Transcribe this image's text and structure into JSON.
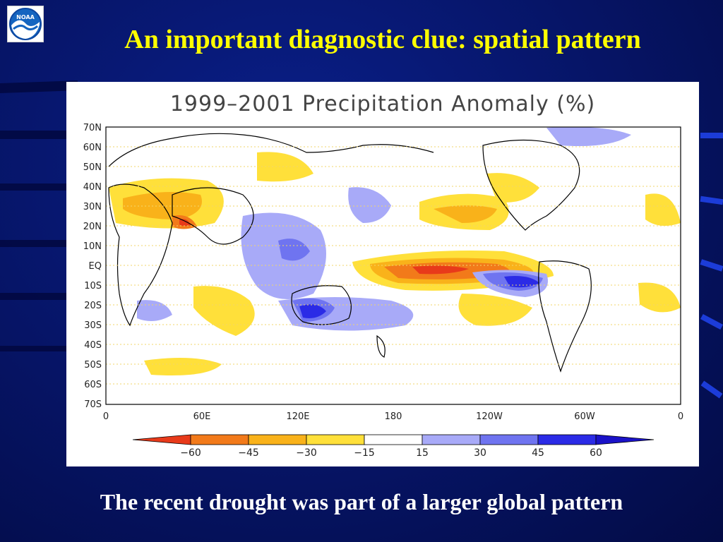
{
  "slide": {
    "title": "An important diagnostic clue: spatial pattern",
    "caption": "The recent drought was part of a larger global pattern",
    "logo_text": "NOAA",
    "colors": {
      "background": "#061465",
      "title": "#ffff00",
      "caption": "#ffffff"
    }
  },
  "map": {
    "title": "1999–2001  Precipitation Anomaly (%)",
    "lat_labels": [
      "70N",
      "60N",
      "50N",
      "40N",
      "30N",
      "20N",
      "10N",
      "EQ",
      "10S",
      "20S",
      "30S",
      "40S",
      "50S",
      "60S",
      "70S"
    ],
    "lon_labels": [
      "0",
      "60E",
      "120E",
      "180",
      "120W",
      "60W",
      "0"
    ],
    "colorbar": {
      "labels": [
        "−60",
        "−45",
        "−30",
        "−15",
        "15",
        "30",
        "45",
        "60"
      ],
      "colors": [
        "#e83a1a",
        "#f27a1a",
        "#f9b21a",
        "#ffe03a",
        "#ffffff",
        "#a8aaf8",
        "#6f74f0",
        "#2b2be6",
        "#1a12c8"
      ]
    }
  }
}
